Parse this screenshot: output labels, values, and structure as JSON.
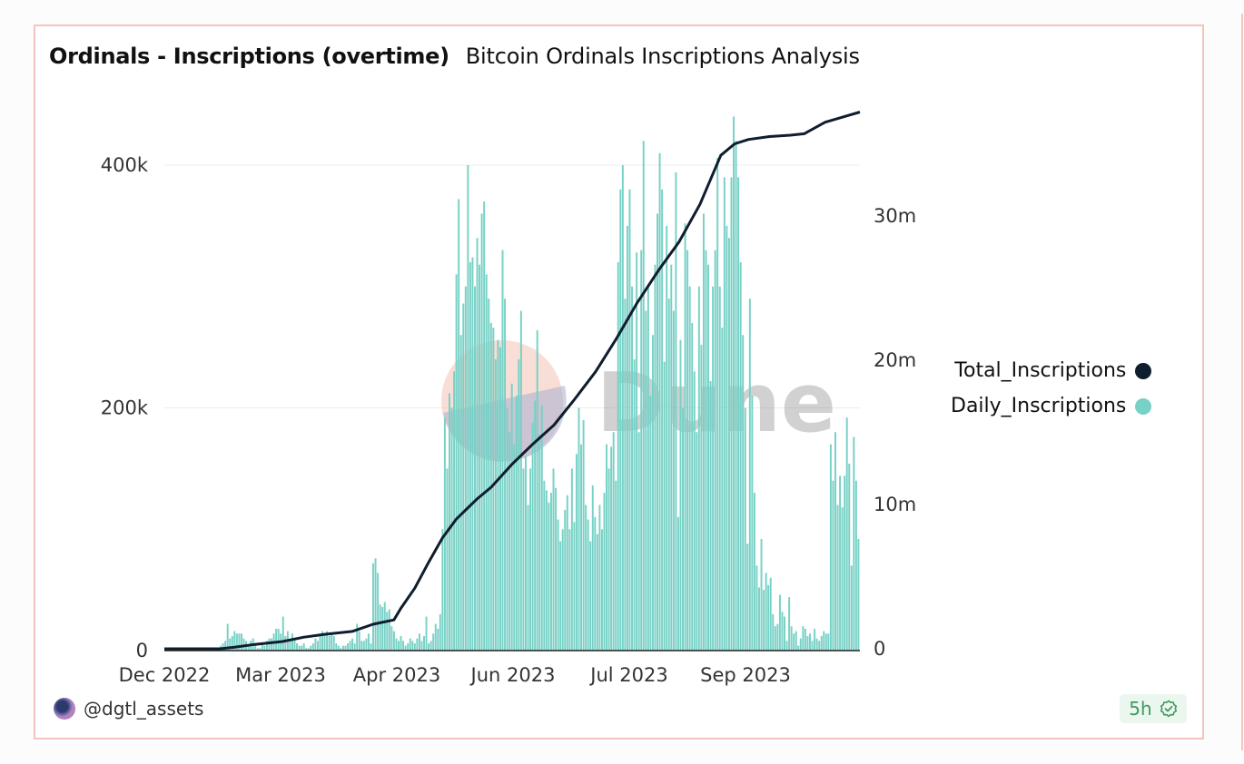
{
  "card": {
    "title": "Ordinals - Inscriptions (overtime)",
    "subtitle": "Bitcoin Ordinals Inscriptions Analysis",
    "author": "@dgtl_assets",
    "freshness_badge": "5h",
    "watermark": "Dune"
  },
  "legend": [
    {
      "label": "Total_Inscriptions",
      "color": "#0f1d2e"
    },
    {
      "label": "Daily_Inscriptions",
      "color": "#77d1c6"
    }
  ],
  "chart_data": {
    "type": "bar",
    "title": "Ordinals - Inscriptions (overtime)",
    "subtitle": "Bitcoin Ordinals Inscriptions Analysis",
    "xlabel": "",
    "x_tick_labels": [
      "Dec 2022",
      "Mar 2023",
      "Apr 2023",
      "Jun 2023",
      "Jul 2023",
      "Sep 2023"
    ],
    "y_left": {
      "label": "",
      "ticks": [
        "0",
        "200k",
        "400k"
      ],
      "tick_values": [
        0,
        200000,
        400000
      ],
      "range": [
        0,
        400000
      ]
    },
    "y_right": {
      "label": "",
      "ticks": [
        "0",
        "10m",
        "20m",
        "30m"
      ],
      "tick_values": [
        0,
        10000000,
        20000000,
        30000000
      ],
      "range": [
        0,
        37000000
      ]
    },
    "grid": true,
    "legend_position": "right",
    "series": [
      {
        "name": "Daily_Inscriptions",
        "type": "bar",
        "axis": "left",
        "color": "#77d1c6",
        "values_k": [
          0,
          0,
          0,
          0,
          0,
          0,
          0,
          0,
          0,
          0,
          0,
          0,
          0,
          0,
          0,
          0,
          0,
          0,
          0,
          0,
          0,
          0,
          0,
          2,
          4,
          6,
          8,
          22,
          10,
          12,
          16,
          14,
          14,
          14,
          10,
          8,
          4,
          8,
          10,
          6,
          2,
          2,
          6,
          4,
          8,
          10,
          10,
          14,
          18,
          18,
          14,
          28,
          12,
          16,
          8,
          14,
          10,
          6,
          4,
          4,
          6,
          2,
          2,
          4,
          6,
          10,
          8,
          12,
          16,
          14,
          16,
          12,
          14,
          12,
          6,
          4,
          2,
          4,
          4,
          6,
          8,
          10,
          6,
          22,
          16,
          8,
          8,
          10,
          14,
          6,
          72,
          76,
          64,
          38,
          36,
          40,
          32,
          34,
          20,
          16,
          10,
          8,
          12,
          8,
          4,
          6,
          10,
          8,
          6,
          10,
          14,
          8,
          12,
          28,
          6,
          8,
          14,
          22,
          18,
          30,
          100,
          192,
          150,
          212,
          200,
          230,
          310,
          372,
          260,
          286,
          300,
          400,
          320,
          324,
          300,
          340,
          318,
          360,
          370,
          310,
          290,
          270,
          266,
          240,
          256,
          250,
          330,
          290,
          200,
          180,
          220,
          170,
          210,
          240,
          280,
          150,
          160,
          120,
          150,
          188,
          206,
          264,
          178,
          202,
          140,
          132,
          122,
          130,
          150,
          134,
          108,
          90,
          100,
          116,
          128,
          100,
          150,
          106,
          162,
          200,
          170,
          190,
          120,
          108,
          90,
          136,
          110,
          96,
          120,
          100,
          130,
          170,
          150,
          168,
          180,
          140,
          320,
          380,
          400,
          290,
          350,
          380,
          300,
          240,
          328,
          180,
          330,
          420,
          280,
          300,
          210,
          260,
          318,
          360,
          410,
          380,
          238,
          350,
          290,
          318,
          280,
          394,
          110,
          256,
          200,
          352,
          330,
          300,
          270,
          230,
          180,
          300,
          252,
          360,
          330,
          318,
          222,
          300,
          330,
          406,
          300,
          266,
          390,
          350,
          340,
          390,
          440,
          420,
          390,
          320,
          260,
          200,
          88,
          290,
          210,
          130,
          70,
          52,
          92,
          50,
          64,
          54,
          60,
          30,
          20,
          22,
          46,
          32,
          28,
          8,
          44,
          20,
          14,
          16,
          4,
          10,
          20,
          18,
          12,
          14,
          8,
          18,
          10,
          8,
          12,
          16,
          14,
          14,
          170,
          140,
          180,
          120,
          144,
          118,
          144,
          192,
          154,
          70,
          176,
          140,
          92
        ],
        "unit": "thousands"
      },
      {
        "name": "Total_Inscriptions",
        "type": "line",
        "axis": "right",
        "color": "#0f1d2e",
        "points_m": [
          [
            0,
            0
          ],
          [
            0.08,
            0
          ],
          [
            0.1,
            0.1
          ],
          [
            0.13,
            0.3
          ],
          [
            0.17,
            0.5
          ],
          [
            0.2,
            0.8
          ],
          [
            0.23,
            1.0
          ],
          [
            0.27,
            1.2
          ],
          [
            0.3,
            1.7
          ],
          [
            0.33,
            2.0
          ],
          [
            0.34,
            2.8
          ],
          [
            0.36,
            4.2
          ],
          [
            0.38,
            6.0
          ],
          [
            0.4,
            7.7
          ],
          [
            0.42,
            9.0
          ],
          [
            0.45,
            10.4
          ],
          [
            0.47,
            11.2
          ],
          [
            0.5,
            12.8
          ],
          [
            0.53,
            14.2
          ],
          [
            0.56,
            15.5
          ],
          [
            0.59,
            17.3
          ],
          [
            0.62,
            19.2
          ],
          [
            0.65,
            21.5
          ],
          [
            0.68,
            24.0
          ],
          [
            0.71,
            26.2
          ],
          [
            0.74,
            28.2
          ],
          [
            0.77,
            30.8
          ],
          [
            0.8,
            34.2
          ],
          [
            0.82,
            35.0
          ],
          [
            0.84,
            35.3
          ],
          [
            0.87,
            35.5
          ],
          [
            0.9,
            35.6
          ],
          [
            0.92,
            35.7
          ],
          [
            0.95,
            36.5
          ],
          [
            1.0,
            37.2
          ]
        ],
        "note": "x as fraction of date range; values in millions"
      }
    ]
  }
}
